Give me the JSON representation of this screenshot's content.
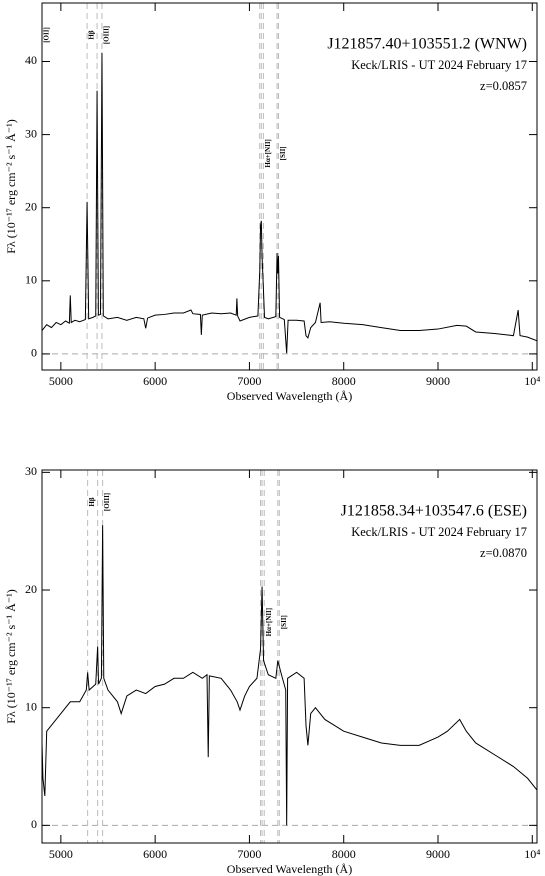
{
  "chart_data": [
    {
      "type": "line",
      "title": "J121857.40+103551.2 (WNW)",
      "subtitle": "Keck/LRIS - UT 2024 February 17",
      "annotation": "z=0.0857",
      "xlabel": "Observed Wavelength (Å)",
      "ylabel": "Fλ (10⁻¹⁷ erg cm⁻² s⁻¹ Å⁻¹)",
      "xlim": [
        4800,
        10050
      ],
      "ylim": [
        -2.2,
        48
      ],
      "xticks": [
        5000,
        6000,
        7000,
        8000,
        9000,
        {
          "value": 10000,
          "label": "10⁴"
        }
      ],
      "yticks": [
        0,
        10,
        20,
        30,
        40
      ],
      "zero_line": true,
      "color": "#000000",
      "line_markers": [
        {
          "label": "[OII]"
        },
        {
          "label": "Hβ",
          "x": [
            5278
          ]
        },
        {
          "label": "[OIII]",
          "x": [
            5384,
            5436
          ]
        },
        {
          "label": "Hα+[NII]",
          "x": [
            7109,
            7126,
            7148
          ]
        },
        {
          "label": "[SII]",
          "x": [
            7293,
            7308
          ]
        }
      ],
      "x": [
        4800,
        4850,
        4900,
        4950,
        5000,
        5050,
        5090,
        5100,
        5110,
        5150,
        5200,
        5260,
        5278,
        5295,
        5340,
        5370,
        5384,
        5398,
        5420,
        5436,
        5450,
        5500,
        5600,
        5700,
        5800,
        5880,
        5900,
        5920,
        6000,
        6100,
        6200,
        6300,
        6380,
        6400,
        6480,
        6490,
        6500,
        6600,
        6700,
        6800,
        6860,
        6867,
        6875,
        6900,
        7000,
        7090,
        7110,
        7118,
        7126,
        7135,
        7148,
        7160,
        7200,
        7280,
        7293,
        7300,
        7308,
        7320,
        7370,
        7395,
        7410,
        7500,
        7580,
        7600,
        7620,
        7650,
        7700,
        7750,
        7760,
        7850,
        8000,
        8200,
        8400,
        8600,
        8800,
        9000,
        9200,
        9300,
        9400,
        9600,
        9800,
        9850,
        9870,
        9950,
        10050
      ],
      "values": [
        3.2,
        4.0,
        3.6,
        4.3,
        4.0,
        4.5,
        4.2,
        8.0,
        4.3,
        4.6,
        4.4,
        4.7,
        20.8,
        4.8,
        5.0,
        5.2,
        36,
        5.3,
        5.4,
        41.2,
        5.2,
        4.8,
        5.0,
        4.6,
        5.0,
        4.8,
        3.5,
        4.9,
        5.3,
        5.4,
        5.6,
        5.6,
        6.0,
        5.5,
        5.4,
        2.6,
        5.3,
        5.6,
        5.5,
        5.6,
        5.3,
        7.6,
        5.2,
        4.5,
        5.0,
        5.2,
        11.5,
        17.6,
        18.2,
        13,
        9,
        5.0,
        4.8,
        5.1,
        13.8,
        11,
        13.4,
        5.0,
        4.7,
        0.1,
        4.6,
        4.6,
        4.5,
        2.5,
        2.2,
        3.6,
        4.3,
        7.0,
        4.3,
        4.4,
        4.2,
        4.0,
        3.6,
        3.2,
        3.2,
        3.4,
        3.9,
        3.8,
        3.0,
        2.8,
        2.5,
        6.0,
        2.5,
        2.3,
        1.8
      ]
    },
    {
      "type": "line",
      "title": "J121858.34+103547.6 (ESE)",
      "subtitle": "Keck/LRIS - UT 2024 February 17",
      "annotation": "z=0.0870",
      "xlabel": "Observed Wavelength (Å)",
      "ylabel": "Fλ (10⁻¹⁷ erg cm⁻² s⁻¹ Å⁻¹)",
      "xlim": [
        4800,
        10050
      ],
      "ylim": [
        -1.5,
        30.2
      ],
      "xticks": [
        5000,
        6000,
        7000,
        8000,
        9000,
        {
          "value": 10000,
          "label": "10⁴"
        }
      ],
      "yticks": [
        0,
        10,
        20,
        30
      ],
      "zero_line": true,
      "color": "#000000",
      "line_markers": [
        {
          "label": "Hβ",
          "x": [
            5284
          ]
        },
        {
          "label": "[OIII]",
          "x": [
            5390,
            5443
          ]
        },
        {
          "label": "Hα+[NII]",
          "x": [
            7118,
            7134,
            7157
          ]
        },
        {
          "label": "[SII]",
          "x": [
            7301,
            7317
          ]
        }
      ],
      "x": [
        4800,
        4810,
        4830,
        4850,
        4900,
        5000,
        5100,
        5200,
        5270,
        5284,
        5300,
        5370,
        5390,
        5400,
        5430,
        5443,
        5455,
        5500,
        5600,
        5640,
        5700,
        5800,
        5900,
        6000,
        6100,
        6200,
        6300,
        6400,
        6500,
        6550,
        6563,
        6575,
        6700,
        6800,
        6870,
        6900,
        6950,
        7000,
        7080,
        7118,
        7134,
        7150,
        7200,
        7280,
        7301,
        7317,
        7340,
        7385,
        7395,
        7405,
        7500,
        7580,
        7600,
        7620,
        7650,
        7700,
        7800,
        7900,
        8000,
        8200,
        8400,
        8600,
        8800,
        9000,
        9100,
        9230,
        9300,
        9400,
        9600,
        9800,
        9950,
        10050
      ],
      "values": [
        7.0,
        4.0,
        2.5,
        8.0,
        8.5,
        9.5,
        10.5,
        10.5,
        11.5,
        13,
        11.5,
        12,
        15.2,
        12,
        12.5,
        25.5,
        12.5,
        11.5,
        10.5,
        9.5,
        11,
        11.5,
        11.2,
        11.8,
        12,
        12.5,
        12.5,
        13,
        12.5,
        12.8,
        5.8,
        12.7,
        12.5,
        11.5,
        10.5,
        9.8,
        11,
        11.8,
        12.5,
        15,
        20.3,
        14,
        12.8,
        12.5,
        14,
        13.5,
        12.8,
        11.5,
        0,
        12.5,
        13,
        12.5,
        8.5,
        6.8,
        9.5,
        10,
        9,
        8.5,
        8,
        7.5,
        7.0,
        6.8,
        6.8,
        7.5,
        8.0,
        9.0,
        8.0,
        7.0,
        6.0,
        5.0,
        4.0,
        3.0
      ]
    }
  ]
}
